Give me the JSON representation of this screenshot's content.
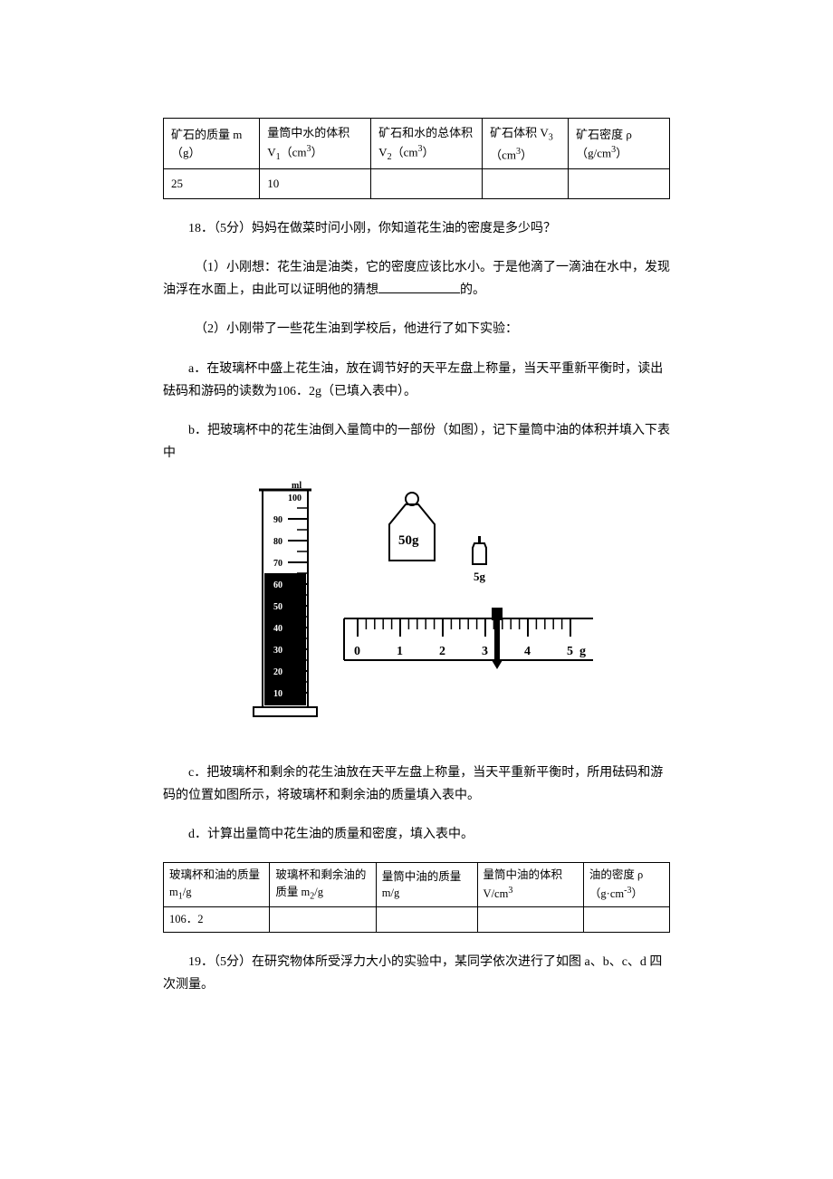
{
  "table1": {
    "columns": [
      "矿石的质量 m（g）",
      "量筒中水的体积 V<sub>1</sub>（cm<sup>3</sup>）",
      "矿石和水的总体积 V<sub>2</sub>（cm<sup>3</sup>）",
      "矿石体积 V<sub>3</sub>（cm<sup>3</sup>）",
      "矿石密度 ρ （g/cm<sup>3</sup>）"
    ],
    "row": [
      "25",
      "10",
      "",
      "",
      ""
    ],
    "col_widths": [
      "19%",
      "22%",
      "22%",
      "17%",
      "20%"
    ]
  },
  "q18": {
    "title": "18．（5分）妈妈在做菜时问小刚，你知道花生油的密度是多少吗？",
    "p1a": "（1）小刚想：花生油是油类，它的密度应该比水小。于是他滴了一滴油在水中，发现油浮在水面上，由此可以证明他的猜想",
    "p1b": "的。",
    "p2": "（2）小刚带了一些花生油到学校后，他进行了如下实验：",
    "pa": "a．在玻璃杯中盛上花生油，放在调节好的天平左盘上称量，当天平重新平衡时，读出砝码和游码的读数为106．2g（已填入表中）。",
    "pb": "b．把玻璃杯中的花生油倒入量筒中的一部份（如图），记下量筒中油的体积并填入下表中",
    "pc": "c．把玻璃杯和剩余的花生油放在天平左盘上称量，当天平重新平衡时，所用砝码和游码的位置如图所示，将玻璃杯和剩余油的质量填入表中。",
    "pd": "d．计算出量筒中花生油的质量和密度，填入表中。"
  },
  "figure": {
    "cylinder": {
      "label_top": "ml",
      "label_100": "100",
      "ticks": [
        "90",
        "80",
        "70",
        "60",
        "50",
        "40",
        "30",
        "20",
        "10"
      ],
      "fill_level": 62,
      "fill_color": "#000000",
      "stroke_color": "#000000"
    },
    "weight50": {
      "label": "50g"
    },
    "weight5": {
      "label": "5g"
    },
    "scale": {
      "ticks": [
        "0",
        "1",
        "2",
        "3",
        "4",
        "5"
      ],
      "unit": "g",
      "pointer_pos": 3.4
    }
  },
  "table2": {
    "columns": [
      "玻璃杯和油的质量 m<sub>1</sub>/g",
      "玻璃杯和剩余油的质量 m<sub>2</sub>/g",
      "量筒中油的质量 m/g",
      "量筒中油的体积 V/cm<sup>3</sup>",
      "油的密度 ρ （g·cm<sup>-3</sup>）"
    ],
    "row": [
      "106．2",
      "",
      "",
      "",
      ""
    ],
    "col_widths": [
      "21%",
      "21%",
      "20%",
      "21%",
      "17%"
    ]
  },
  "q19": {
    "title": "19．（5分）在研究物体所受浮力大小的实验中，某同学依次进行了如图 a、b、c、d 四次测量。"
  }
}
